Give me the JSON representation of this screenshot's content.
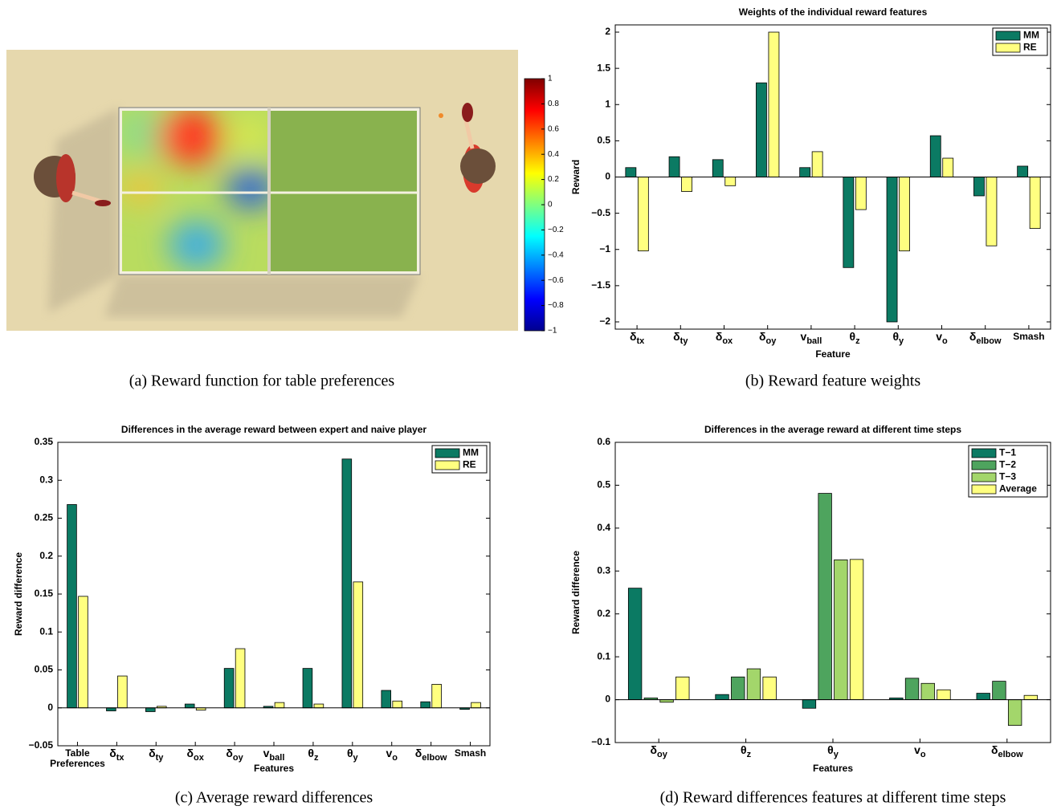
{
  "chart_data": [
    {
      "type": "heatmap",
      "caption": "(a) Reward function for table preferences",
      "clim": [
        -1,
        1
      ],
      "cticks": [
        1,
        0.8,
        0.6,
        0.4,
        0.2,
        0,
        {
          "value": -0.2,
          "label": "−0.2"
        },
        {
          "value": -0.4,
          "label": "−0.4"
        },
        {
          "value": -0.6,
          "label": "−0.6"
        },
        {
          "value": -0.8,
          "label": "−0.8"
        },
        {
          "value": -1,
          "label": "−1"
        }
      ]
    },
    {
      "type": "bar",
      "title": "Weights of the individual reward features",
      "caption": "(b) Reward feature weights",
      "xlabel": "Feature",
      "ylabel": "Reward",
      "categories": [
        "δtx",
        "δty",
        "δox",
        "δoy",
        "vball",
        "θz",
        "θy",
        "vo",
        "δelbow",
        "Smash"
      ],
      "series": [
        {
          "name": "MM",
          "color": "#0b7a63",
          "values": [
            0.13,
            0.28,
            0.24,
            1.3,
            0.13,
            -1.25,
            -2.0,
            0.57,
            -0.26,
            0.15
          ]
        },
        {
          "name": "RE",
          "color": "#ffff80",
          "values": [
            -1.02,
            -0.2,
            -0.12,
            2.0,
            0.35,
            -0.45,
            -1.02,
            0.26,
            -0.95,
            -0.71
          ]
        }
      ],
      "ylim": [
        -2.1,
        2.1
      ],
      "yticks": [
        {
          "value": -2,
          "label": "−2"
        },
        {
          "value": -1.5,
          "label": "−1.5"
        },
        {
          "value": -1,
          "label": "−1"
        },
        {
          "value": -0.5,
          "label": "−0.5"
        },
        0,
        0.5,
        1,
        1.5,
        2
      ],
      "legend": "upper right"
    },
    {
      "type": "bar",
      "title": "Differences in the average reward between expert and naive player",
      "caption": "(c) Average reward differences",
      "xlabel": "Features",
      "ylabel": "Reward difference",
      "categories": [
        "Table Preferences",
        "δtx",
        "δty",
        "δox",
        "δoy",
        "vball",
        "θz",
        "θy",
        "vo",
        "δelbow",
        "Smash"
      ],
      "series": [
        {
          "name": "MM",
          "color": "#0b7a63",
          "values": [
            0.268,
            -0.004,
            -0.005,
            0.005,
            0.052,
            0.002,
            0.052,
            0.328,
            0.023,
            0.008,
            -0.002
          ]
        },
        {
          "name": "RE",
          "color": "#ffff80",
          "values": [
            0.147,
            0.042,
            0.002,
            -0.003,
            0.078,
            0.007,
            0.005,
            0.166,
            0.009,
            0.031,
            0.007
          ]
        }
      ],
      "ylim": [
        -0.05,
        0.35
      ],
      "yticks": [
        {
          "value": -0.05,
          "label": "−0.05"
        },
        0,
        0.05,
        0.1,
        0.15,
        0.2,
        0.25,
        0.3,
        0.35
      ],
      "legend": "upper right"
    },
    {
      "type": "bar",
      "title": "Differences in the average reward at different time steps",
      "caption": "(d) Reward differences features at different time steps",
      "xlabel": "Features",
      "ylabel": "Reward difference",
      "categories": [
        "δoy",
        "θz",
        "θy",
        "vo",
        "δelbow"
      ],
      "series": [
        {
          "name": "T−1",
          "color": "#0b7a63",
          "values": [
            0.26,
            0.012,
            -0.02,
            0.004,
            0.015
          ]
        },
        {
          "name": "T−2",
          "color": "#4ea45e",
          "values": [
            0.004,
            0.053,
            0.481,
            0.05,
            0.043
          ]
        },
        {
          "name": "T−3",
          "color": "#a3d66b",
          "values": [
            -0.006,
            0.072,
            0.326,
            0.038,
            -0.06
          ]
        },
        {
          "name": "Average",
          "color": "#ffff80",
          "values": [
            0.053,
            0.053,
            0.327,
            0.023,
            0.01
          ]
        }
      ],
      "ylim": [
        -0.1,
        0.6
      ],
      "yticks": [
        {
          "value": -0.1,
          "label": "−0.1"
        },
        0,
        0.1,
        0.2,
        0.3,
        0.4,
        0.5,
        0.6
      ],
      "legend": "upper right"
    }
  ]
}
